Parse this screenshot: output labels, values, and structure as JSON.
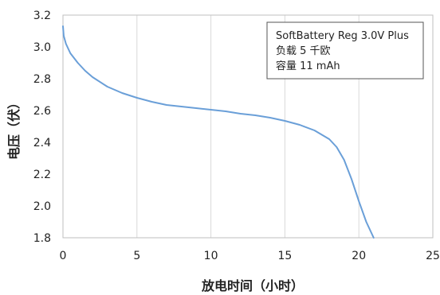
{
  "chart_data": {
    "type": "line",
    "xlabel": "放电时间（小时）",
    "ylabel": "电压（伏）",
    "xlim": [
      0,
      25
    ],
    "ylim": [
      1.8,
      3.2
    ],
    "x_ticks": [
      "0",
      "5",
      "10",
      "15",
      "20",
      "25"
    ],
    "y_ticks": [
      "1.8",
      "2.0",
      "2.2",
      "2.4",
      "2.6",
      "2.8",
      "3.0",
      "3.2"
    ],
    "grid": "vertical",
    "legend_position": "top-right",
    "annotation_lines": [
      "SoftBattery Reg 3.0V Plus",
      "负载 5 千欧",
      "容量 11 mAh"
    ],
    "line_color": "#6a9fd8",
    "series": [
      {
        "x": [
          0,
          0.05,
          0.2,
          0.5,
          1,
          1.5,
          2,
          3,
          4,
          5,
          6,
          7,
          8,
          9,
          10,
          11,
          12,
          13,
          14,
          15,
          16,
          17,
          18,
          18.5,
          19,
          19.5,
          20,
          20.5,
          21
        ],
        "values": [
          3.13,
          3.07,
          3.02,
          2.96,
          2.9,
          2.85,
          2.81,
          2.75,
          2.71,
          2.68,
          2.655,
          2.635,
          2.625,
          2.615,
          2.605,
          2.595,
          2.58,
          2.57,
          2.555,
          2.535,
          2.51,
          2.475,
          2.42,
          2.37,
          2.29,
          2.17,
          2.03,
          1.9,
          1.8
        ]
      }
    ]
  }
}
